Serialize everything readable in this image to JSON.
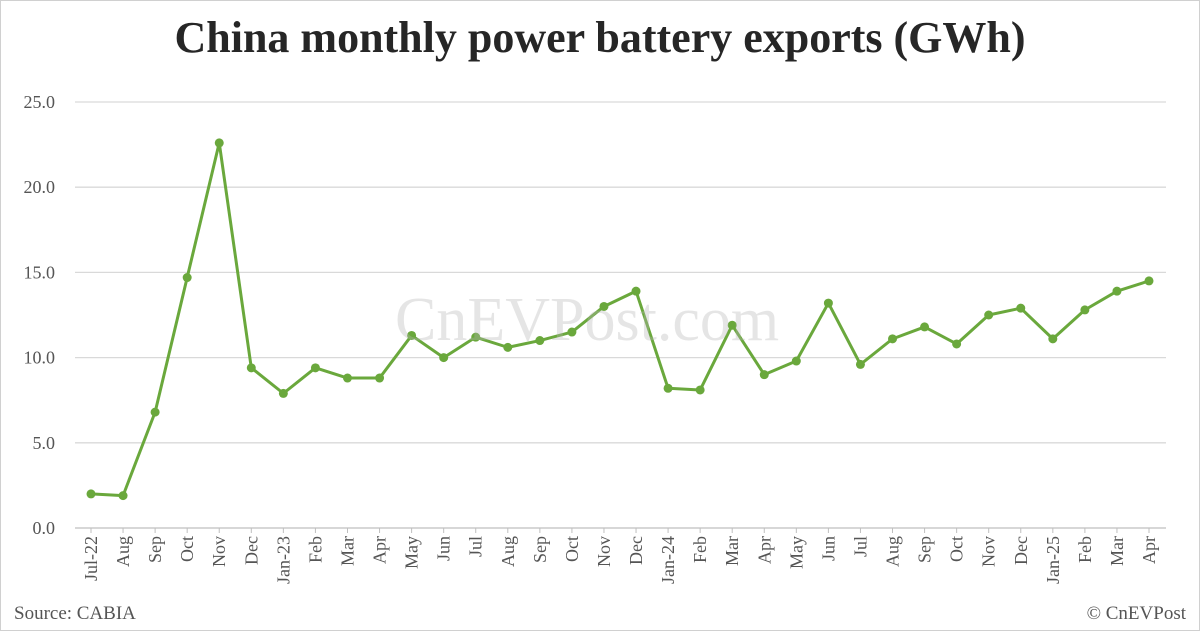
{
  "chart_data": {
    "type": "line",
    "title": "China monthly power battery exports (GWh)",
    "xlabel": "",
    "ylabel": "",
    "ylim": [
      0,
      25
    ],
    "yticks": [
      "0.0",
      "5.0",
      "10.0",
      "15.0",
      "20.0",
      "25.0"
    ],
    "grid": true,
    "line_color": "#6aa83c",
    "categories": [
      "Jul-22",
      "Aug",
      "Sep",
      "Oct",
      "Nov",
      "Dec",
      "Jan-23",
      "Feb",
      "Mar",
      "Apr",
      "May",
      "Jun",
      "Jul",
      "Aug",
      "Sep",
      "Oct",
      "Nov",
      "Dec",
      "Jan-24",
      "Feb",
      "Mar",
      "Apr",
      "May",
      "Jun",
      "Jul",
      "Aug",
      "Sep",
      "Oct",
      "Nov",
      "Dec",
      "Jan-25",
      "Feb",
      "Mar",
      "Apr"
    ],
    "values": [
      2.0,
      1.9,
      6.8,
      14.7,
      22.6,
      9.4,
      7.9,
      9.4,
      8.8,
      8.8,
      11.3,
      10.0,
      11.2,
      10.6,
      11.0,
      11.5,
      13.0,
      13.9,
      8.2,
      8.1,
      11.9,
      9.0,
      9.8,
      13.2,
      9.6,
      11.1,
      11.8,
      10.8,
      12.5,
      12.9,
      11.1,
      12.8,
      13.9,
      14.5
    ]
  },
  "watermark": "CnEVPost.com",
  "source": "Source: CABIA",
  "copyright": "© CnEVPost"
}
